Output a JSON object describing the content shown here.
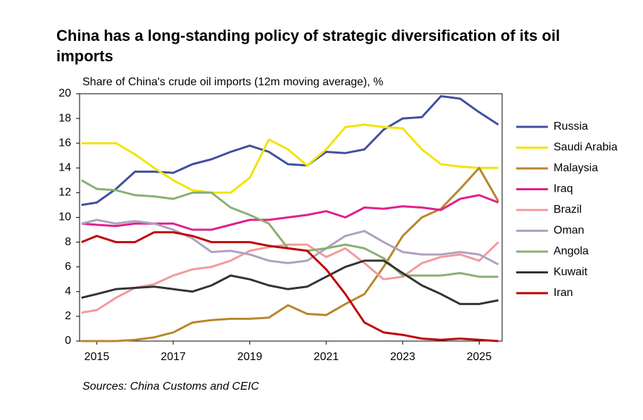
{
  "chart_data": {
    "type": "line",
    "title": "China has a long-standing policy of strategic diversification of its oil imports",
    "subtitle": "Share of China's crude oil imports (12m moving average), %",
    "source": "Sources: China Customs and CEIC",
    "x": [
      2014.6,
      2015,
      2015.5,
      2016,
      2016.5,
      2017,
      2017.5,
      2018,
      2018.5,
      2019,
      2019.5,
      2020,
      2020.5,
      2021,
      2021.5,
      2022,
      2022.5,
      2023,
      2023.5,
      2024,
      2024.5,
      2025,
      2025.5
    ],
    "xlim": [
      2014.55,
      2025.6
    ],
    "xticks": [
      2015,
      2017,
      2019,
      2021,
      2023,
      2025
    ],
    "ylim": [
      0,
      20
    ],
    "yticks": [
      0,
      2,
      4,
      6,
      8,
      10,
      12,
      14,
      16,
      18,
      20
    ],
    "legend": "right",
    "series": [
      {
        "name": "Russia",
        "color": "#3f4f9f",
        "values": [
          11,
          11.2,
          12.3,
          13.7,
          13.7,
          13.6,
          14.3,
          14.7,
          15.3,
          15.8,
          15.3,
          14.3,
          14.2,
          15.3,
          15.2,
          15.5,
          17.1,
          18.0,
          18.1,
          19.8,
          19.6,
          18.5,
          17.5
        ]
      },
      {
        "name": "Saudi Arabia",
        "color": "#f2e400",
        "values": [
          16.0,
          16.0,
          16.0,
          15.1,
          14.0,
          13.0,
          12.2,
          12.0,
          12.0,
          13.2,
          16.3,
          15.5,
          14.2,
          15.5,
          17.3,
          17.5,
          17.3,
          17.2,
          15.5,
          14.3,
          14.1,
          14.0,
          14.0
        ]
      },
      {
        "name": "Malaysia",
        "color": "#b8862b",
        "values": [
          0,
          0,
          0,
          0.1,
          0.3,
          0.7,
          1.5,
          1.7,
          1.8,
          1.8,
          1.9,
          2.9,
          2.2,
          2.1,
          3.0,
          3.8,
          6.0,
          8.5,
          10.0,
          10.7,
          12.3,
          14.0,
          11.3
        ]
      },
      {
        "name": "Iraq",
        "color": "#e0208a",
        "values": [
          9.5,
          9.4,
          9.3,
          9.5,
          9.5,
          9.5,
          9.0,
          9.0,
          9.4,
          9.8,
          9.8,
          10.0,
          10.2,
          10.5,
          10.0,
          10.8,
          10.7,
          10.9,
          10.8,
          10.6,
          11.5,
          11.8,
          11.2
        ]
      },
      {
        "name": "Brazil",
        "color": "#f29a9a",
        "values": [
          2.3,
          2.5,
          3.5,
          4.3,
          4.6,
          5.3,
          5.8,
          6.0,
          6.5,
          7.3,
          7.6,
          7.8,
          7.8,
          6.8,
          7.5,
          6.3,
          5.0,
          5.2,
          6.3,
          6.8,
          7.0,
          6.5,
          8.0
        ]
      },
      {
        "name": "Oman",
        "color": "#b0a0c0",
        "values": [
          9.5,
          9.8,
          9.5,
          9.7,
          9.5,
          9.0,
          8.3,
          7.2,
          7.3,
          7.0,
          6.5,
          6.3,
          6.5,
          7.5,
          8.5,
          8.9,
          8.0,
          7.2,
          7.0,
          7.0,
          7.2,
          7.0,
          6.2
        ]
      },
      {
        "name": "Angola",
        "color": "#88b070",
        "values": [
          13.0,
          12.3,
          12.2,
          11.8,
          11.7,
          11.5,
          12.0,
          12.0,
          10.8,
          10.2,
          9.5,
          7.5,
          7.3,
          7.5,
          7.8,
          7.5,
          6.7,
          5.3,
          5.3,
          5.3,
          5.5,
          5.2,
          5.2
        ]
      },
      {
        "name": "Kuwait",
        "color": "#333333",
        "values": [
          3.5,
          3.8,
          4.2,
          4.3,
          4.4,
          4.2,
          4.0,
          4.5,
          5.3,
          5.0,
          4.5,
          4.2,
          4.4,
          5.2,
          6.0,
          6.5,
          6.5,
          5.5,
          4.5,
          3.8,
          3.0,
          3.0,
          3.3
        ]
      },
      {
        "name": "Iran",
        "color": "#c00000",
        "values": [
          8.0,
          8.5,
          8.0,
          8.0,
          8.8,
          8.8,
          8.5,
          8.0,
          8.0,
          8.0,
          7.7,
          7.5,
          7.3,
          5.8,
          3.8,
          1.5,
          0.7,
          0.5,
          0.2,
          0.1,
          0.2,
          0.1,
          0.0
        ]
      }
    ]
  }
}
